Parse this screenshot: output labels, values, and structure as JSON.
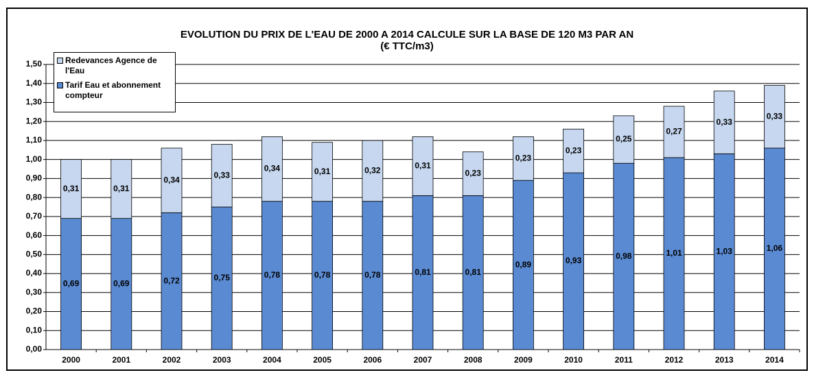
{
  "chart_data": {
    "type": "stacked_bar",
    "title": "EVOLUTION DU PRIX DE L'EAU DE 2000 A 2014 CALCULE SUR LA BASE DE 120 M3 PAR AN",
    "subtitle": "(€ TTC/m3)",
    "categories": [
      "2000",
      "2001",
      "2002",
      "2003",
      "2004",
      "2005",
      "2006",
      "2007",
      "2008",
      "2009",
      "2010",
      "2011",
      "2012",
      "2013",
      "2014"
    ],
    "series": [
      {
        "name": "Tarif Eau et abonnement compteur",
        "color": "#5a8ad2",
        "values": [
          0.69,
          0.69,
          0.72,
          0.75,
          0.78,
          0.78,
          0.78,
          0.81,
          0.81,
          0.89,
          0.93,
          0.98,
          1.01,
          1.03,
          1.06
        ],
        "value_labels": [
          "0,69",
          "0,69",
          "0,72",
          "0,75",
          "0,78",
          "0,78",
          "0,78",
          "0,81",
          "0,81",
          "0,89",
          "0,93",
          "0,98",
          "1,01",
          "1,03",
          "1,06"
        ]
      },
      {
        "name": "Redevances Agence de l'Eau",
        "color": "#c6d7ef",
        "values": [
          0.31,
          0.31,
          0.34,
          0.33,
          0.34,
          0.31,
          0.32,
          0.31,
          0.23,
          0.23,
          0.23,
          0.25,
          0.27,
          0.33,
          0.33
        ],
        "value_labels": [
          "0,31",
          "0,31",
          "0,34",
          "0,33",
          "0,34",
          "0,31",
          "0,32",
          "0,31",
          "0,23",
          "0,23",
          "0,23",
          "0,25",
          "0,27",
          "0,33",
          "0,33"
        ]
      }
    ],
    "ylim": [
      0,
      1.5
    ],
    "yticks": [
      {
        "value": 0,
        "label": "0,00"
      },
      {
        "value": 0.1,
        "label": "0,10"
      },
      {
        "value": 0.2,
        "label": "0,20"
      },
      {
        "value": 0.3,
        "label": "0,30"
      },
      {
        "value": 0.4,
        "label": "0,40"
      },
      {
        "value": 0.5,
        "label": "0,50"
      },
      {
        "value": 0.6,
        "label": "0,60"
      },
      {
        "value": 0.7,
        "label": "0,70"
      },
      {
        "value": 0.8,
        "label": "0,80"
      },
      {
        "value": 0.9,
        "label": "0,90"
      },
      {
        "value": 1,
        "label": "1,00"
      },
      {
        "value": 1.1,
        "label": "1,10"
      },
      {
        "value": 1.2,
        "label": "1,20"
      },
      {
        "value": 1.3,
        "label": "1,30"
      },
      {
        "value": 1.4,
        "label": "1,40"
      },
      {
        "value": 1.5,
        "label": "1,50"
      }
    ],
    "grid": true,
    "legend": "top-left"
  }
}
